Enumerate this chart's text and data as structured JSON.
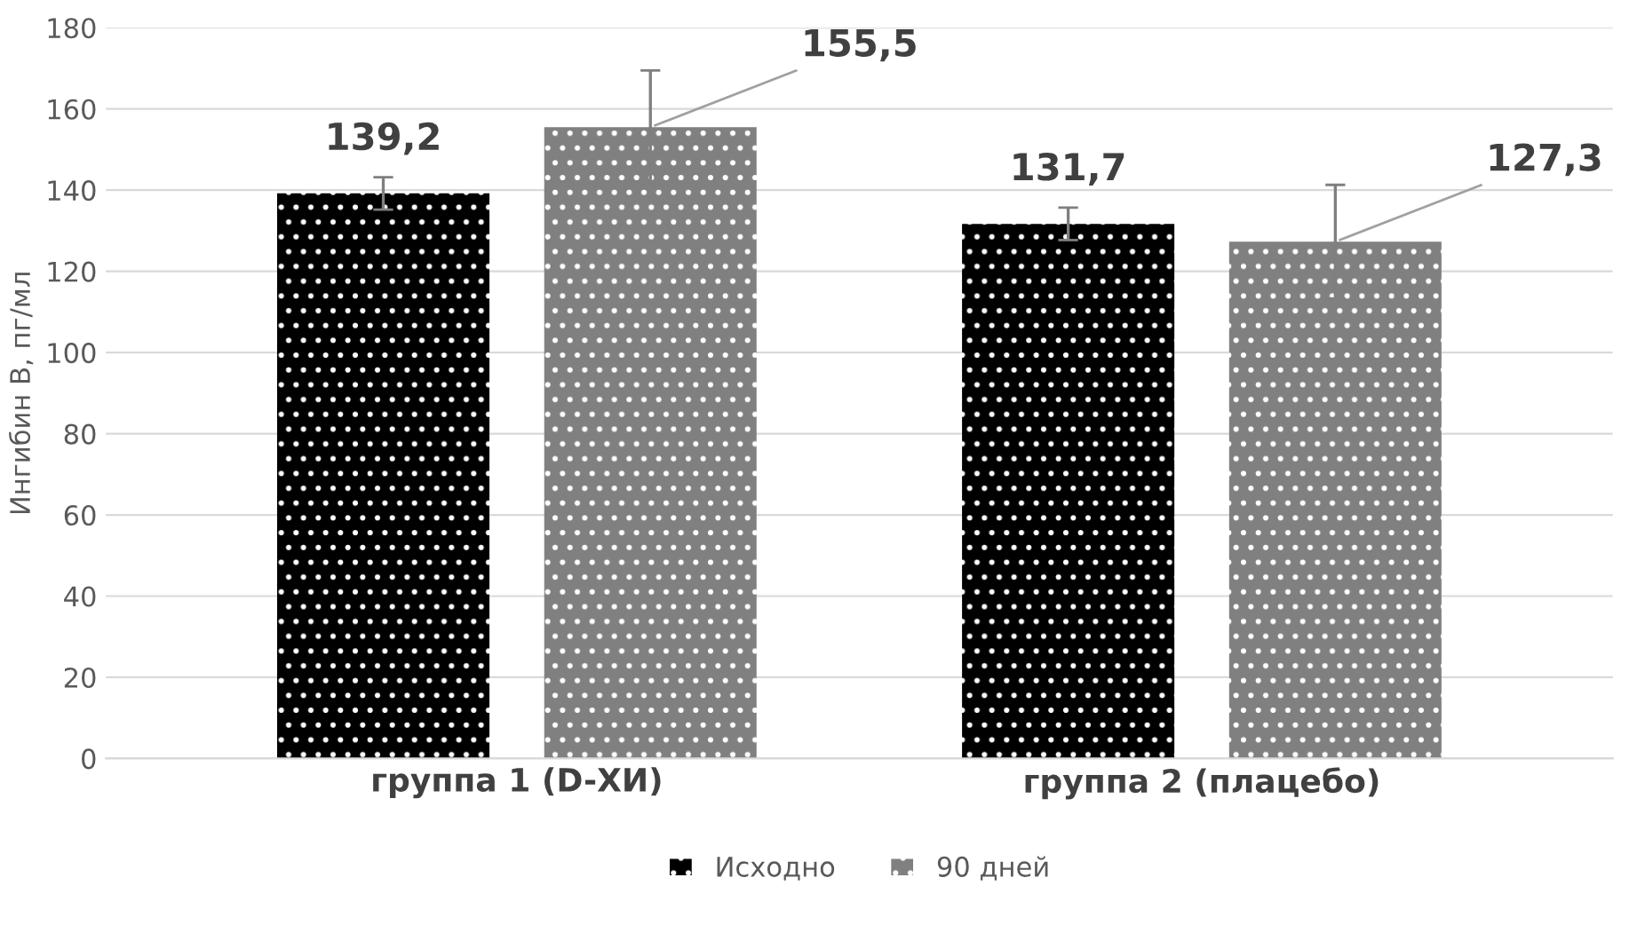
{
  "chart_data": {
    "type": "bar",
    "ylabel": "Ингибин В, пг/мл",
    "categories": [
      "группа 1 (D-ХИ)",
      "группа 2 (плацебо)"
    ],
    "series": [
      {
        "name": "Исходно",
        "color": "#000000",
        "values": [
          139.2,
          131.7
        ],
        "errors": [
          4,
          4
        ],
        "value_labels": [
          "139,2",
          "131,7"
        ]
      },
      {
        "name": "90 дней",
        "color": "#808080",
        "values": [
          155.5,
          127.3
        ],
        "errors": [
          14,
          14
        ],
        "value_labels": [
          "155,5",
          "127,3"
        ]
      }
    ],
    "ylim": [
      0,
      180
    ],
    "yticks": [
      0,
      20,
      40,
      60,
      80,
      100,
      120,
      140,
      160,
      180
    ],
    "grid": "y",
    "legend": "bottom"
  }
}
